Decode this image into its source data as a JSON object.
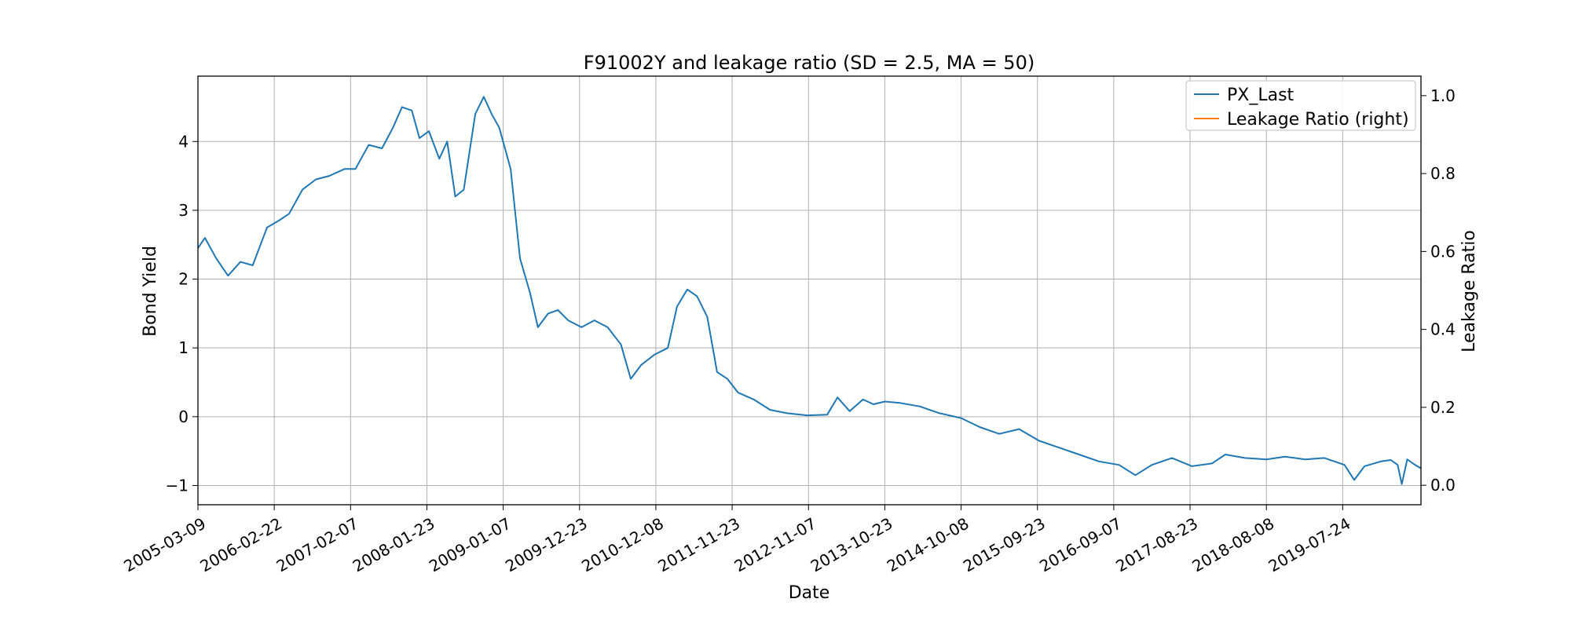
{
  "chart_data": {
    "type": "line",
    "title": "F91002Y and leakage ratio (SD = 2.5, MA = 50)",
    "xlabel": "Date",
    "ylabel": "Bond Yield",
    "y2label": "Leakage Ratio",
    "x_tick_labels": [
      "2005-03-09",
      "2006-02-22",
      "2007-02-07",
      "2008-01-23",
      "2009-01-07",
      "2009-12-23",
      "2010-12-08",
      "2011-11-23",
      "2012-11-07",
      "2013-10-23",
      "2014-10-08",
      "2015-09-23",
      "2016-09-07",
      "2017-08-23",
      "2018-08-08",
      "2019-07-24"
    ],
    "y_ticks": [
      -1,
      0,
      1,
      2,
      3,
      4
    ],
    "y2_ticks": [
      0.0,
      0.2,
      0.4,
      0.6,
      0.8,
      1.0
    ],
    "xlim": [
      "2005-03-09",
      "2020-07-17"
    ],
    "ylim": [
      -1.28,
      4.95
    ],
    "y2lim": [
      -0.05,
      1.05
    ],
    "grid": true,
    "legend_position": "top-right",
    "series": [
      {
        "name": "PX_Last",
        "axis": "left",
        "color": "#1f77b4",
        "points": [
          [
            "2005-03-09",
            2.45
          ],
          [
            "2005-04-10",
            2.6
          ],
          [
            "2005-06-01",
            2.3
          ],
          [
            "2005-07-25",
            2.05
          ],
          [
            "2005-09-20",
            2.25
          ],
          [
            "2005-11-15",
            2.2
          ],
          [
            "2006-01-20",
            2.75
          ],
          [
            "2006-03-15",
            2.85
          ],
          [
            "2006-05-01",
            2.95
          ],
          [
            "2006-07-01",
            3.3
          ],
          [
            "2006-09-01",
            3.45
          ],
          [
            "2006-11-01",
            3.5
          ],
          [
            "2007-01-10",
            3.6
          ],
          [
            "2007-03-01",
            3.6
          ],
          [
            "2007-05-01",
            3.95
          ],
          [
            "2007-07-01",
            3.9
          ],
          [
            "2007-08-20",
            4.2
          ],
          [
            "2007-10-01",
            4.5
          ],
          [
            "2007-11-15",
            4.45
          ],
          [
            "2007-12-20",
            4.05
          ],
          [
            "2008-02-01",
            4.15
          ],
          [
            "2008-03-20",
            3.75
          ],
          [
            "2008-04-25",
            4.0
          ],
          [
            "2008-06-01",
            3.2
          ],
          [
            "2008-07-10",
            3.3
          ],
          [
            "2008-09-01",
            4.4
          ],
          [
            "2008-10-10",
            4.65
          ],
          [
            "2008-11-15",
            4.4
          ],
          [
            "2008-12-20",
            4.2
          ],
          [
            "2009-02-10",
            3.6
          ],
          [
            "2009-03-25",
            2.3
          ],
          [
            "2009-05-10",
            1.8
          ],
          [
            "2009-06-15",
            1.3
          ],
          [
            "2009-08-01",
            1.5
          ],
          [
            "2009-09-15",
            1.55
          ],
          [
            "2009-11-01",
            1.4
          ],
          [
            "2010-01-01",
            1.3
          ],
          [
            "2010-03-01",
            1.4
          ],
          [
            "2010-05-01",
            1.3
          ],
          [
            "2010-07-01",
            1.05
          ],
          [
            "2010-08-15",
            0.55
          ],
          [
            "2010-10-01",
            0.75
          ],
          [
            "2010-12-01",
            0.9
          ],
          [
            "2011-02-01",
            1.0
          ],
          [
            "2011-03-15",
            1.6
          ],
          [
            "2011-05-01",
            1.85
          ],
          [
            "2011-06-15",
            1.75
          ],
          [
            "2011-08-01",
            1.45
          ],
          [
            "2011-09-15",
            0.65
          ],
          [
            "2011-11-01",
            0.55
          ],
          [
            "2011-12-20",
            0.35
          ],
          [
            "2012-03-01",
            0.25
          ],
          [
            "2012-05-15",
            0.1
          ],
          [
            "2012-08-01",
            0.05
          ],
          [
            "2012-11-01",
            0.02
          ],
          [
            "2013-02-01",
            0.03
          ],
          [
            "2013-03-20",
            0.28
          ],
          [
            "2013-05-15",
            0.08
          ],
          [
            "2013-07-15",
            0.25
          ],
          [
            "2013-09-01",
            0.18
          ],
          [
            "2013-10-23",
            0.22
          ],
          [
            "2014-01-01",
            0.2
          ],
          [
            "2014-04-01",
            0.15
          ],
          [
            "2014-07-01",
            0.05
          ],
          [
            "2014-10-08",
            -0.02
          ],
          [
            "2015-01-01",
            -0.15
          ],
          [
            "2015-04-01",
            -0.25
          ],
          [
            "2015-07-01",
            -0.18
          ],
          [
            "2015-10-01",
            -0.35
          ],
          [
            "2016-01-01",
            -0.45
          ],
          [
            "2016-04-01",
            -0.55
          ],
          [
            "2016-07-01",
            -0.65
          ],
          [
            "2016-10-01",
            -0.7
          ],
          [
            "2016-12-15",
            -0.85
          ],
          [
            "2017-03-01",
            -0.7
          ],
          [
            "2017-06-01",
            -0.6
          ],
          [
            "2017-09-01",
            -0.72
          ],
          [
            "2017-12-01",
            -0.68
          ],
          [
            "2018-02-01",
            -0.55
          ],
          [
            "2018-05-01",
            -0.6
          ],
          [
            "2018-08-08",
            -0.62
          ],
          [
            "2018-11-01",
            -0.58
          ],
          [
            "2019-02-01",
            -0.62
          ],
          [
            "2019-05-01",
            -0.6
          ],
          [
            "2019-08-01",
            -0.7
          ],
          [
            "2019-09-15",
            -0.92
          ],
          [
            "2019-11-01",
            -0.72
          ],
          [
            "2020-01-15",
            -0.65
          ],
          [
            "2020-03-01",
            -0.63
          ],
          [
            "2020-04-01",
            -0.7
          ],
          [
            "2020-04-20",
            -0.98
          ],
          [
            "2020-05-15",
            -0.62
          ],
          [
            "2020-06-20",
            -0.7
          ],
          [
            "2020-07-17",
            -0.75
          ]
        ]
      },
      {
        "name": "Leakage Ratio (right)",
        "axis": "right",
        "color": "#ff7f0e",
        "points": []
      }
    ]
  }
}
